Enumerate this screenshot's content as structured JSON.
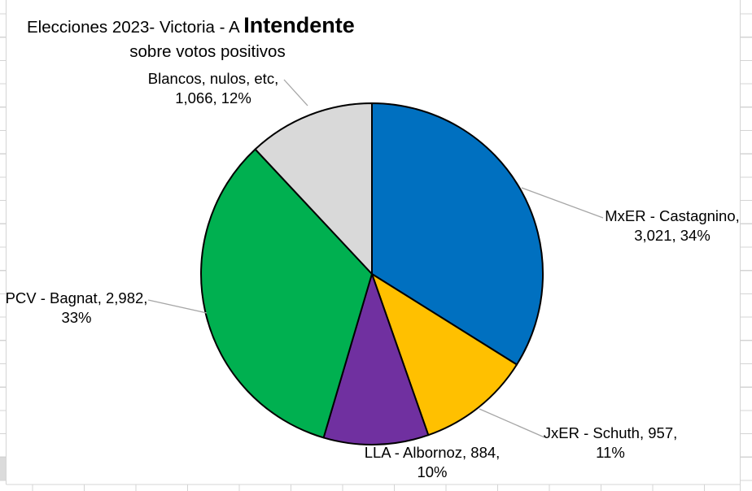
{
  "chart_data": {
    "type": "pie",
    "title_prefix": "Elecciones 2023- Victoria - A ",
    "title_emphasis": "Intendente",
    "subtitle": "sobre votos positivos",
    "direction": "clockwise",
    "start_angle_deg": 0,
    "legend_position": "none",
    "label_format": "name, value, percent",
    "slices": [
      {
        "name": "MxER - Castagnino",
        "votes": 3021,
        "pct": 34,
        "color": "#0070C0",
        "label_line1": "MxER - Castagnino,",
        "label_line2": "3,021, 34%"
      },
      {
        "name": "JxER - Schuth",
        "votes": 957,
        "pct": 11,
        "color": "#FFC000",
        "label_line1": "JxER - Schuth, 957,",
        "label_line2": "11%"
      },
      {
        "name": "LLA - Albornoz",
        "votes": 884,
        "pct": 10,
        "color": "#7030A0",
        "label_line1": "LLA - Albornoz, 884,",
        "label_line2": "10%"
      },
      {
        "name": "PCV - Bagnat",
        "votes": 2982,
        "pct": 33,
        "color": "#00B050",
        "label_line1": "PCV - Bagnat, 2,982,",
        "label_line2": "33%"
      },
      {
        "name": "Blancos, nulos, etc",
        "votes": 1066,
        "pct": 12,
        "color": "#D9D9D9",
        "label_line1": "Blancos, nulos, etc,",
        "label_line2": "1,066, 12%"
      }
    ]
  },
  "style": {
    "slice_border_color": "#000000",
    "leader_line_color": "#A6A6A6",
    "gridline_color": "#D4D4D4",
    "shaded_cell_color": "#DBDBDB",
    "background": "#FFFFFF",
    "text_color": "#000000"
  }
}
